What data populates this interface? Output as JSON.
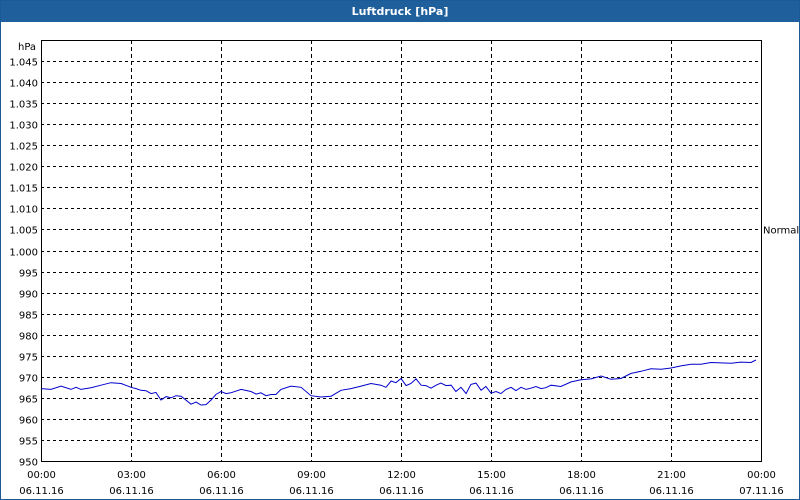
{
  "chart_data": {
    "type": "line",
    "title": "Luftdruck [hPa]",
    "ylabel": "hPa",
    "ylim": [
      950,
      1050
    ],
    "yticks": [
      {
        "v": 1045,
        "label": "1.045"
      },
      {
        "v": 1040,
        "label": "1.040"
      },
      {
        "v": 1035,
        "label": "1.035"
      },
      {
        "v": 1030,
        "label": "1.030"
      },
      {
        "v": 1025,
        "label": "1.025"
      },
      {
        "v": 1020,
        "label": "1.020"
      },
      {
        "v": 1015,
        "label": "1.015"
      },
      {
        "v": 1010,
        "label": "1.010"
      },
      {
        "v": 1005,
        "label": "1.005"
      },
      {
        "v": 1000,
        "label": "1.000"
      },
      {
        "v": 995,
        "label": "995"
      },
      {
        "v": 990,
        "label": "990"
      },
      {
        "v": 985,
        "label": "985"
      },
      {
        "v": 980,
        "label": "980"
      },
      {
        "v": 975,
        "label": "975"
      },
      {
        "v": 970,
        "label": "970"
      },
      {
        "v": 965,
        "label": "965"
      },
      {
        "v": 960,
        "label": "960"
      },
      {
        "v": 955,
        "label": "955"
      },
      {
        "v": 950,
        "label": "950"
      }
    ],
    "xlim": [
      0,
      24
    ],
    "xticks": [
      {
        "h": 0,
        "time": "00:00",
        "date": "06.11.16"
      },
      {
        "h": 3,
        "time": "03:00",
        "date": "06.11.16"
      },
      {
        "h": 6,
        "time": "06:00",
        "date": "06.11.16"
      },
      {
        "h": 9,
        "time": "09:00",
        "date": "06.11.16"
      },
      {
        "h": 12,
        "time": "12:00",
        "date": "06.11.16"
      },
      {
        "h": 15,
        "time": "15:00",
        "date": "06.11.16"
      },
      {
        "h": 18,
        "time": "18:00",
        "date": "06.11.16"
      },
      {
        "h": 21,
        "time": "21:00",
        "date": "06.11.16"
      },
      {
        "h": 24,
        "time": "00:00",
        "date": "07.11.16"
      }
    ],
    "reference": {
      "label": "Normal",
      "value": 1005
    },
    "grid": true,
    "series": [
      {
        "color": "#0000cc",
        "x": [
          0,
          0.33,
          0.67,
          1.0,
          1.17,
          1.33,
          1.67,
          2.0,
          2.33,
          2.67,
          3.0,
          3.17,
          3.33,
          3.5,
          3.67,
          3.83,
          4.0,
          4.17,
          4.33,
          4.5,
          4.67,
          5.0,
          5.17,
          5.33,
          5.5,
          5.67,
          5.83,
          6.0,
          6.17,
          6.33,
          6.67,
          7.0,
          7.17,
          7.33,
          7.5,
          7.67,
          7.83,
          8.0,
          8.33,
          8.67,
          9.0,
          9.33,
          9.67,
          10.0,
          10.33,
          10.67,
          11.0,
          11.33,
          11.5,
          11.67,
          11.83,
          12.0,
          12.17,
          12.33,
          12.5,
          12.67,
          12.83,
          13.0,
          13.17,
          13.33,
          13.5,
          13.67,
          13.83,
          14.0,
          14.17,
          14.33,
          14.5,
          14.67,
          14.83,
          15.0,
          15.17,
          15.33,
          15.5,
          15.67,
          15.83,
          16.0,
          16.17,
          16.33,
          16.5,
          16.67,
          16.83,
          17.0,
          17.33,
          17.67,
          18.0,
          18.33,
          18.67,
          19.0,
          19.33,
          19.67,
          20.0,
          20.33,
          20.67,
          21.0,
          21.33,
          21.67,
          22.0,
          22.33,
          22.67,
          23.0,
          23.33,
          23.67,
          23.83
        ],
        "y": [
          967.2,
          967.0,
          967.8,
          967.0,
          967.5,
          967.0,
          967.4,
          968.0,
          968.6,
          968.4,
          967.5,
          967.2,
          966.8,
          966.7,
          966.0,
          966.3,
          964.5,
          965.3,
          965.0,
          965.5,
          965.4,
          963.5,
          964.0,
          963.3,
          963.4,
          964.5,
          965.8,
          966.5,
          966.0,
          966.2,
          967.0,
          966.5,
          965.9,
          966.2,
          965.5,
          965.8,
          965.8,
          967.0,
          967.8,
          967.5,
          965.5,
          965.2,
          965.4,
          966.8,
          967.2,
          967.8,
          968.4,
          968.0,
          967.5,
          969.0,
          968.6,
          969.6,
          967.9,
          968.4,
          969.5,
          968.0,
          967.9,
          967.3,
          968.0,
          968.5,
          967.9,
          968.0,
          966.5,
          967.5,
          966.0,
          968.2,
          968.5,
          966.8,
          967.7,
          966.1,
          966.5,
          966.0,
          967.0,
          967.5,
          966.7,
          967.5,
          967.0,
          967.3,
          967.7,
          967.2,
          967.4,
          968.0,
          967.7,
          968.8,
          969.3,
          969.5,
          970.2,
          969.4,
          969.6,
          970.8,
          971.3,
          971.9,
          971.8,
          972.1,
          972.6,
          973.0,
          973.0,
          973.4,
          973.3,
          973.2,
          973.5,
          973.4,
          974.0
        ]
      }
    ]
  }
}
